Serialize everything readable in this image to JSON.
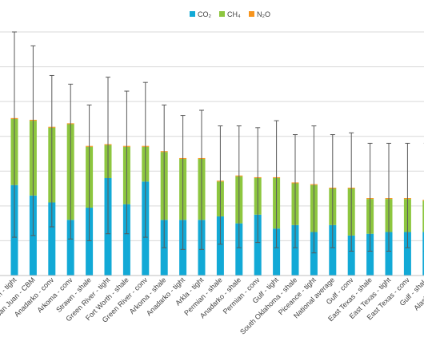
{
  "chart_data": {
    "type": "bar",
    "stacked": true,
    "error_bars": true,
    "grid": "horizontal",
    "legend_position": "top",
    "categories": [
      "San Juan - tight",
      "San Juan - CBM",
      "Anadarko - conv",
      "Arkoma - conv",
      "Strawn - shale",
      "Green River - tight",
      "Fort Worth - shale",
      "Green River - conv",
      "Arkoma - shale",
      "Anadarko - tight",
      "Arkla - tight",
      "Permian - shale",
      "Anadarko - shale",
      "Permian - conv",
      "Gulf - tight",
      "South Oklahoma - shale",
      "Piceance - tight",
      "National average",
      "Gulf - conv",
      "East Texas - shale",
      "East Texas - tight",
      "East Texas - conv",
      "Gulf - shale",
      "Alaska - conv"
    ],
    "ylim": [
      0,
      14
    ],
    "series": [
      {
        "name": "CO₂",
        "color": "#12a9d6",
        "values": [
          5.2,
          4.6,
          4.2,
          3.2,
          3.9,
          5.6,
          4.1,
          5.4,
          3.2,
          3.2,
          3.2,
          3.4,
          3.0,
          3.5,
          2.7,
          2.9,
          2.5,
          2.9,
          2.3,
          2.4,
          2.5,
          2.5,
          2.5,
          2.3
        ]
      },
      {
        "name": "CH₄",
        "color": "#8dc63f",
        "values": [
          3.8,
          4.3,
          4.3,
          5.5,
          3.5,
          1.9,
          3.3,
          2.0,
          3.9,
          3.5,
          3.5,
          2.0,
          2.7,
          2.1,
          2.9,
          2.4,
          2.7,
          2.1,
          2.7,
          2.0,
          1.9,
          1.9,
          1.8,
          1.9
        ]
      },
      {
        "name": "N₂O",
        "color": "#f7941d",
        "values": [
          0.05,
          0.05,
          0.05,
          0.05,
          0.05,
          0.05,
          0.05,
          0.05,
          0.05,
          0.05,
          0.05,
          0.05,
          0.05,
          0.05,
          0.05,
          0.05,
          0.05,
          0.05,
          0.05,
          0.05,
          0.05,
          0.05,
          0.05,
          0.05
        ]
      }
    ],
    "error_low": [
      2.2,
      2.3,
      2.8,
      2.1,
      2.0,
      2.4,
      2.4,
      2.2,
      1.6,
      1.5,
      1.5,
      1.8,
      1.6,
      1.9,
      1.6,
      1.6,
      1.3,
      1.6,
      1.4,
      1.4,
      1.4,
      1.6,
      1.4,
      1.2
    ],
    "error_high": [
      14.0,
      13.2,
      11.5,
      11.0,
      9.8,
      11.4,
      10.6,
      11.1,
      9.8,
      9.2,
      9.5,
      8.6,
      8.6,
      8.5,
      8.9,
      8.1,
      8.6,
      8.1,
      8.2,
      7.6,
      7.6,
      7.6,
      7.6,
      7.5
    ]
  }
}
